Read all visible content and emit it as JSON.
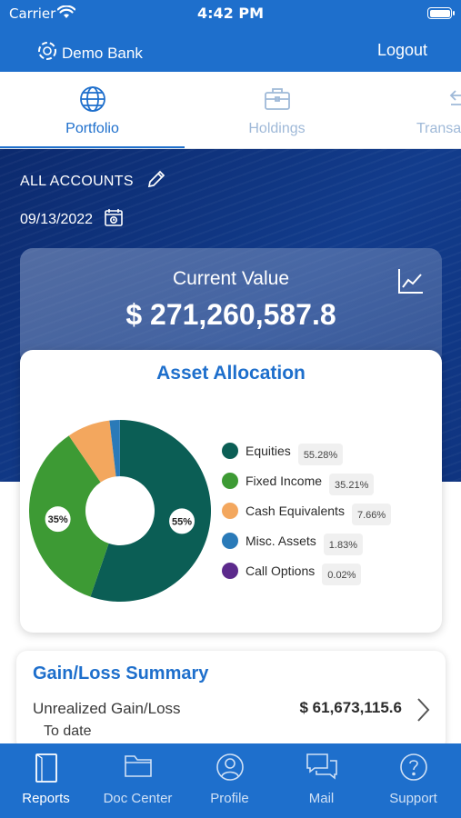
{
  "status_bar": {
    "carrier": "Carrier",
    "time": "4:42 PM"
  },
  "app_bar": {
    "brand": "Demo Bank",
    "logout_label": "Logout"
  },
  "tabs": [
    {
      "label": "Portfolio",
      "icon": "globe-icon",
      "active": true
    },
    {
      "label": "Holdings",
      "icon": "briefcase-icon",
      "active": false
    },
    {
      "label": "Transac",
      "icon": "arrow-left-icon",
      "active": false
    }
  ],
  "account": {
    "label": "ALL ACCOUNTS",
    "date": "09/13/2022"
  },
  "current_value": {
    "title": "Current Value",
    "amount": "$ 271,260,587.8"
  },
  "allocation": {
    "title": "Asset Allocation",
    "slice_labels": [
      "55%",
      "35%"
    ],
    "items": [
      {
        "name": "Equities",
        "pct": "55.28%",
        "value": 55.28,
        "color": "#0b5e55"
      },
      {
        "name": "Fixed Income",
        "pct": "35.21%",
        "value": 35.21,
        "color": "#3d9a34"
      },
      {
        "name": "Cash Equivalents",
        "pct": "7.66%",
        "value": 7.66,
        "color": "#f3a75e"
      },
      {
        "name": "Misc. Assets",
        "pct": "1.83%",
        "value": 1.83,
        "color": "#2a7ab8"
      },
      {
        "name": "Call Options",
        "pct": "0.02%",
        "value": 0.02,
        "color": "#5c2a8c"
      }
    ]
  },
  "gain_loss": {
    "title": "Gain/Loss Summary",
    "label": "Unrealized Gain/Loss",
    "sub": "To date",
    "value": "$ 61,673,115.6"
  },
  "bottom_nav": [
    {
      "label": "Reports",
      "icon": "reports-icon",
      "active": true
    },
    {
      "label": "Doc Center",
      "icon": "folder-icon",
      "active": false
    },
    {
      "label": "Profile",
      "icon": "profile-icon",
      "active": false
    },
    {
      "label": "Mail",
      "icon": "mail-icon",
      "active": false
    },
    {
      "label": "Support",
      "icon": "support-icon",
      "active": false
    }
  ]
}
